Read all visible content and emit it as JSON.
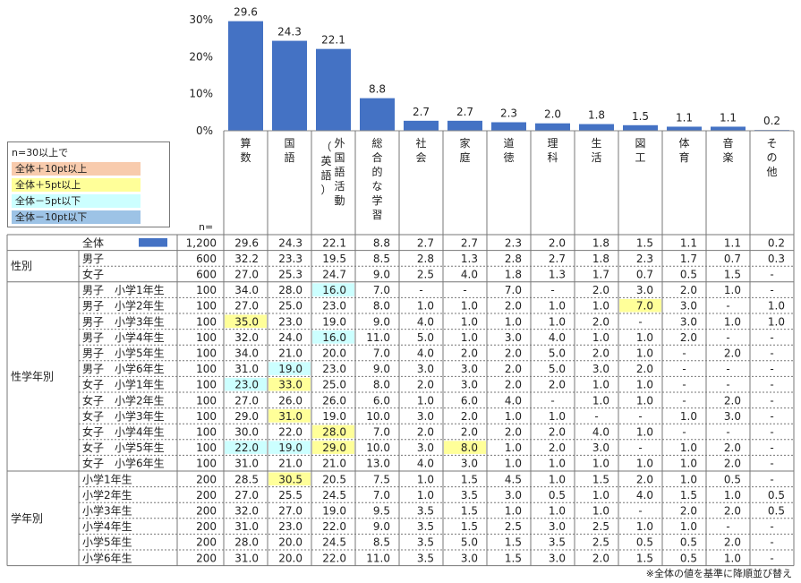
{
  "chart_data": {
    "type": "bar",
    "categories": [
      [
        "算",
        "数"
      ],
      [
        "国",
        "語"
      ],
      [
        "外",
        "国",
        "語",
        "活",
        "動",
        "（",
        "英",
        "語",
        "）"
      ],
      [
        "総",
        "合",
        "的",
        "な",
        "学",
        "習"
      ],
      [
        "社",
        "会"
      ],
      [
        "家",
        "庭"
      ],
      [
        "道",
        "徳"
      ],
      [
        "理",
        "科"
      ],
      [
        "生",
        "活"
      ],
      [
        "図",
        "工"
      ],
      [
        "体",
        "育"
      ],
      [
        "音",
        "楽"
      ],
      [
        "そ",
        "の",
        "他"
      ]
    ],
    "values": [
      29.6,
      24.3,
      22.1,
      8.8,
      2.7,
      2.7,
      2.3,
      2.0,
      1.8,
      1.5,
      1.1,
      1.1,
      0.2
    ],
    "ylim": [
      0,
      30
    ],
    "yticks": [
      "0%",
      "10%",
      "20%",
      "30%"
    ],
    "bar_color": "#4472C4",
    "n_label": "n=",
    "table": {
      "total": {
        "label": "全体",
        "n": "1,200",
        "values": [
          "29.6",
          "24.3",
          "22.1",
          "8.8",
          "2.7",
          "2.7",
          "2.3",
          "2.0",
          "1.8",
          "1.5",
          "1.1",
          "1.1",
          "0.2"
        ]
      },
      "groups": [
        {
          "label": "性別",
          "rows": [
            {
              "label": "男子",
              "n": "600",
              "values": [
                "32.2",
                "23.3",
                "19.5",
                "8.5",
                "2.8",
                "1.3",
                "2.8",
                "2.7",
                "1.8",
                "2.3",
                "1.7",
                "0.7",
                "0.3"
              ],
              "hl": {}
            },
            {
              "label": "女子",
              "n": "600",
              "values": [
                "27.0",
                "25.3",
                "24.7",
                "9.0",
                "2.5",
                "4.0",
                "1.8",
                "1.3",
                "1.7",
                "0.7",
                "0.5",
                "1.5",
                "-"
              ],
              "hl": {}
            }
          ]
        },
        {
          "label": "性学年別",
          "rows": [
            {
              "label": "男子　小学1年生",
              "n": "100",
              "values": [
                "34.0",
                "28.0",
                "16.0",
                "7.0",
                "-",
                "-",
                "7.0",
                "-",
                "2.0",
                "3.0",
                "2.0",
                "1.0",
                "-"
              ],
              "hl": {
                "2": "cyan"
              }
            },
            {
              "label": "男子　小学2年生",
              "n": "100",
              "values": [
                "27.0",
                "25.0",
                "23.0",
                "8.0",
                "1.0",
                "1.0",
                "2.0",
                "1.0",
                "1.0",
                "7.0",
                "3.0",
                "-",
                "1.0"
              ],
              "hl": {
                "9": "yellow"
              }
            },
            {
              "label": "男子　小学3年生",
              "n": "100",
              "values": [
                "35.0",
                "23.0",
                "19.0",
                "9.0",
                "4.0",
                "1.0",
                "1.0",
                "1.0",
                "2.0",
                "-",
                "3.0",
                "1.0",
                "1.0"
              ],
              "hl": {
                "0": "yellow"
              }
            },
            {
              "label": "男子　小学4年生",
              "n": "100",
              "values": [
                "32.0",
                "24.0",
                "16.0",
                "11.0",
                "5.0",
                "1.0",
                "3.0",
                "4.0",
                "1.0",
                "1.0",
                "2.0",
                "-",
                "-"
              ],
              "hl": {
                "2": "cyan"
              }
            },
            {
              "label": "男子　小学5年生",
              "n": "100",
              "values": [
                "34.0",
                "21.0",
                "20.0",
                "7.0",
                "4.0",
                "2.0",
                "2.0",
                "5.0",
                "2.0",
                "1.0",
                "-",
                "2.0",
                "-"
              ],
              "hl": {}
            },
            {
              "label": "男子　小学6年生",
              "n": "100",
              "values": [
                "31.0",
                "19.0",
                "23.0",
                "9.0",
                "3.0",
                "3.0",
                "2.0",
                "5.0",
                "3.0",
                "2.0",
                "-",
                "-",
                "-"
              ],
              "hl": {
                "1": "cyan"
              }
            },
            {
              "label": "女子　小学1年生",
              "n": "100",
              "values": [
                "23.0",
                "33.0",
                "25.0",
                "8.0",
                "2.0",
                "3.0",
                "2.0",
                "2.0",
                "1.0",
                "1.0",
                "-",
                "-",
                "-"
              ],
              "hl": {
                "0": "cyan",
                "1": "yellow"
              }
            },
            {
              "label": "女子　小学2年生",
              "n": "100",
              "values": [
                "27.0",
                "26.0",
                "26.0",
                "6.0",
                "1.0",
                "6.0",
                "4.0",
                "-",
                "1.0",
                "1.0",
                "-",
                "2.0",
                "-"
              ],
              "hl": {}
            },
            {
              "label": "女子　小学3年生",
              "n": "100",
              "values": [
                "29.0",
                "31.0",
                "19.0",
                "10.0",
                "3.0",
                "2.0",
                "1.0",
                "1.0",
                "-",
                "-",
                "1.0",
                "3.0",
                "-"
              ],
              "hl": {
                "1": "yellow"
              }
            },
            {
              "label": "女子　小学4年生",
              "n": "100",
              "values": [
                "30.0",
                "22.0",
                "28.0",
                "7.0",
                "2.0",
                "2.0",
                "2.0",
                "2.0",
                "4.0",
                "1.0",
                "-",
                "-",
                "-"
              ],
              "hl": {
                "2": "yellow"
              }
            },
            {
              "label": "女子　小学5年生",
              "n": "100",
              "values": [
                "22.0",
                "19.0",
                "29.0",
                "10.0",
                "3.0",
                "8.0",
                "1.0",
                "2.0",
                "3.0",
                "-",
                "1.0",
                "2.0",
                "-"
              ],
              "hl": {
                "0": "cyan",
                "1": "cyan",
                "2": "yellow",
                "5": "yellow"
              }
            },
            {
              "label": "女子　小学6年生",
              "n": "100",
              "values": [
                "31.0",
                "21.0",
                "21.0",
                "13.0",
                "4.0",
                "3.0",
                "1.0",
                "1.0",
                "1.0",
                "1.0",
                "1.0",
                "2.0",
                "-"
              ],
              "hl": {}
            }
          ]
        },
        {
          "label": "学年別",
          "rows": [
            {
              "label": "小学1年生",
              "n": "200",
              "values": [
                "28.5",
                "30.5",
                "20.5",
                "7.5",
                "1.0",
                "1.5",
                "4.5",
                "1.0",
                "1.5",
                "2.0",
                "1.0",
                "0.5",
                "-"
              ],
              "hl": {
                "1": "yellow"
              }
            },
            {
              "label": "小学2年生",
              "n": "200",
              "values": [
                "27.0",
                "25.5",
                "24.5",
                "7.0",
                "1.0",
                "3.5",
                "3.0",
                "0.5",
                "1.0",
                "4.0",
                "1.5",
                "1.0",
                "0.5"
              ],
              "hl": {}
            },
            {
              "label": "小学3年生",
              "n": "200",
              "values": [
                "32.0",
                "27.0",
                "19.0",
                "9.5",
                "3.5",
                "1.5",
                "1.0",
                "1.0",
                "1.0",
                "-",
                "2.0",
                "2.0",
                "0.5"
              ],
              "hl": {}
            },
            {
              "label": "小学4年生",
              "n": "200",
              "values": [
                "31.0",
                "23.0",
                "22.0",
                "9.0",
                "3.5",
                "1.5",
                "2.5",
                "3.0",
                "2.5",
                "1.0",
                "1.0",
                "-",
                "-"
              ],
              "hl": {}
            },
            {
              "label": "小学5年生",
              "n": "200",
              "values": [
                "28.0",
                "20.0",
                "24.5",
                "8.5",
                "3.5",
                "5.0",
                "1.5",
                "3.5",
                "2.5",
                "0.5",
                "0.5",
                "2.0",
                "-"
              ],
              "hl": {}
            },
            {
              "label": "小学6年生",
              "n": "200",
              "values": [
                "31.0",
                "20.0",
                "22.0",
                "11.0",
                "3.5",
                "3.0",
                "1.5",
                "3.0",
                "2.0",
                "1.5",
                "0.5",
                "1.0",
                "-"
              ],
              "hl": {}
            }
          ]
        }
      ]
    },
    "highlight_colors": {
      "orange": "#F8CBAD",
      "yellow": "#FFFF99",
      "cyan": "#CCFFFF",
      "blue": "#9DC3E6"
    }
  },
  "legend": {
    "title": "n=30以上で",
    "items": [
      {
        "label": "全体＋10pt以上",
        "color": "#F8CBAD"
      },
      {
        "label": "全体＋5pt以上",
        "color": "#FFFF99"
      },
      {
        "label": "全体－5pt以下",
        "color": "#CCFFFF"
      },
      {
        "label": "全体－10pt以下",
        "color": "#9DC3E6"
      }
    ]
  },
  "footnote": "※全体の値を基準に降順並び替え"
}
